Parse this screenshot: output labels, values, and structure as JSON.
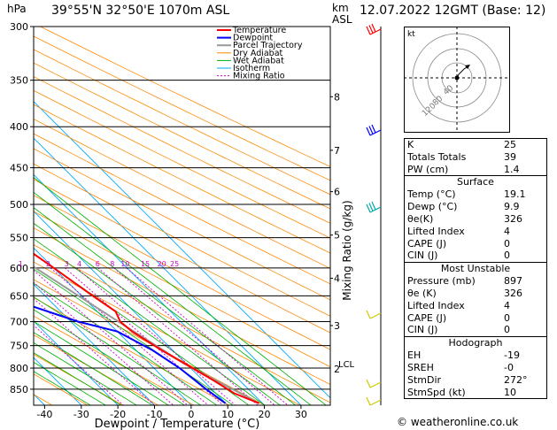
{
  "header": {
    "location": "39°55'N  32°50'E  1070m  ASL",
    "datetime": "12.07.2022  12GMT  (Base: 12)",
    "unit_hpa": "hPa",
    "unit_km": "km",
    "unit_asl": "ASL"
  },
  "footer": {
    "credit": "© weatheronline.co.uk"
  },
  "colors": {
    "temperature": "#ff0000",
    "dewpoint": "#0000ff",
    "parcel": "#999999",
    "dry_adiabat": "#ff8800",
    "wet_adiabat": "#00b000",
    "isotherm": "#00aaff",
    "mixing_ratio": "#cc00cc",
    "wind_barb": "#00cccc"
  },
  "chart_data": {
    "type": "line",
    "xlabel": "Dewpoint / Temperature (°C)",
    "ylabel_right": "Mixing Ratio (g/kg)",
    "x_ticks": [
      -40,
      -30,
      -20,
      -10,
      0,
      10,
      20,
      30
    ],
    "xlim": [
      -43,
      38
    ],
    "pressure_ticks": [
      300,
      350,
      400,
      450,
      500,
      550,
      600,
      650,
      700,
      750,
      800,
      850
    ],
    "ylim_hpa": [
      300,
      890
    ],
    "km_ticks": [
      {
        "label": "8",
        "p": 367
      },
      {
        "label": "7",
        "p": 428
      },
      {
        "label": "6",
        "p": 482
      },
      {
        "label": "5",
        "p": 546
      },
      {
        "label": "4",
        "p": 618
      },
      {
        "label": "3",
        "p": 708
      }
    ],
    "lcl": {
      "label": "LCL",
      "p": 790
    },
    "km2": {
      "label": "2",
      "p": 802
    },
    "mixing_ratio_labels": [
      {
        "label": "1",
        "t_at_600": -9
      },
      {
        "label": "2",
        "t_at_600": -1.5
      },
      {
        "label": "3",
        "t_at_600": 3.5
      },
      {
        "label": "4",
        "t_at_600": 7
      },
      {
        "label": "6",
        "t_at_600": 12
      },
      {
        "label": "8",
        "t_at_600": 16
      },
      {
        "label": "10",
        "t_at_600": 19.5
      },
      {
        "label": "15",
        "t_at_600": 25
      },
      {
        "label": "20",
        "t_at_600": 29.5
      },
      {
        "label": "25",
        "t_at_600": 33
      }
    ],
    "legend": [
      "Temperature",
      "Dewpoint",
      "Parcel Trajectory",
      "Dry Adiabat",
      "Wet Adiabat",
      "Isotherm",
      "Mixing Ratio"
    ],
    "legend_position": "top-left",
    "series": [
      {
        "name": "Temperature",
        "points": [
          {
            "p": 885,
            "t": 19.1
          },
          {
            "p": 860,
            "t": 15
          },
          {
            "p": 830,
            "t": 13
          },
          {
            "p": 800,
            "t": 10.5
          },
          {
            "p": 760,
            "t": 7
          },
          {
            "p": 720,
            "t": 4
          },
          {
            "p": 700,
            "t": 3.5
          },
          {
            "p": 680,
            "t": 5
          },
          {
            "p": 650,
            "t": 3
          },
          {
            "p": 600,
            "t": 0
          },
          {
            "p": 550,
            "t": -3.5
          },
          {
            "p": 500,
            "t": -9
          },
          {
            "p": 450,
            "t": -15
          },
          {
            "p": 400,
            "t": -22
          },
          {
            "p": 350,
            "t": -29
          },
          {
            "p": 300,
            "t": -37
          }
        ]
      },
      {
        "name": "Dewpoint",
        "points": [
          {
            "p": 885,
            "t": 9.9
          },
          {
            "p": 850,
            "t": 8.5
          },
          {
            "p": 800,
            "t": 7
          },
          {
            "p": 760,
            "t": 4.5
          },
          {
            "p": 720,
            "t": 0
          },
          {
            "p": 700,
            "t": -8
          },
          {
            "p": 650,
            "t": -22
          },
          {
            "p": 600,
            "t": -30
          },
          {
            "p": 550,
            "t": -36
          },
          {
            "p": 500,
            "t": -42
          },
          {
            "p": 450,
            "t": -46
          },
          {
            "p": 400,
            "t": -53
          },
          {
            "p": 350,
            "t": -60
          },
          {
            "p": 300,
            "t": -68
          }
        ]
      },
      {
        "name": "Parcel Trajectory",
        "points": [
          {
            "p": 885,
            "t": 19.1
          },
          {
            "p": 790,
            "t": 9.5
          },
          {
            "p": 700,
            "t": 3
          },
          {
            "p": 600,
            "t": -5
          },
          {
            "p": 500,
            "t": -15
          },
          {
            "p": 400,
            "t": -28
          },
          {
            "p": 350,
            "t": -36
          },
          {
            "p": 300,
            "t": -45
          }
        ]
      }
    ]
  },
  "hodograph": {
    "unit_label": "kt",
    "ring_labels": [
      "120",
      "80",
      "40"
    ]
  },
  "indices": {
    "top": [
      {
        "label": "K",
        "value": "25"
      },
      {
        "label": "Totals Totals",
        "value": "39"
      },
      {
        "label": "PW (cm)",
        "value": "1.4"
      }
    ],
    "surface": {
      "title": "Surface",
      "rows": [
        {
          "label": "Temp (°C)",
          "value": "19.1"
        },
        {
          "label": "Dewp (°C)",
          "value": "9.9"
        },
        {
          "label": "θe(K)",
          "value": "326"
        },
        {
          "label": "Lifted Index",
          "value": "4"
        },
        {
          "label": "CAPE (J)",
          "value": "0"
        },
        {
          "label": "CIN (J)",
          "value": "0"
        }
      ]
    },
    "most_unstable": {
      "title": "Most Unstable",
      "rows": [
        {
          "label": "Pressure (mb)",
          "value": "897"
        },
        {
          "label": "θe (K)",
          "value": "326"
        },
        {
          "label": "Lifted Index",
          "value": "4"
        },
        {
          "label": "CAPE (J)",
          "value": "0"
        },
        {
          "label": "CIN (J)",
          "value": "0"
        }
      ]
    },
    "hodograph": {
      "title": "Hodograph",
      "rows": [
        {
          "label": "EH",
          "value": "-19"
        },
        {
          "label": "SREH",
          "value": "-0"
        },
        {
          "label": "StmDir",
          "value": "272°"
        },
        {
          "label": "StmSpd (kt)",
          "value": "10"
        }
      ]
    }
  }
}
